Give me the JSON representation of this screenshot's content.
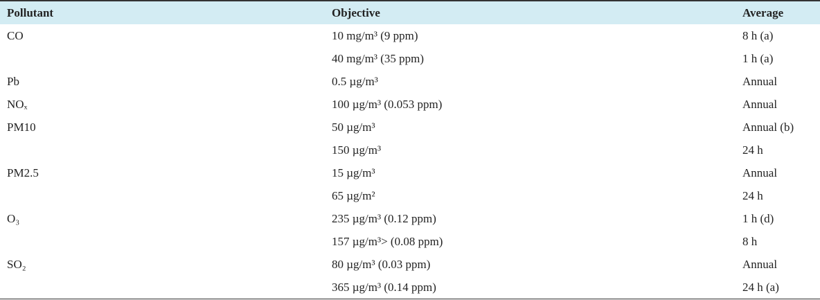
{
  "table": {
    "headers": [
      "Pollutant",
      "Objective",
      "Average"
    ],
    "rows": [
      [
        "CO",
        "10 mg/m³ (9 ppm)",
        "8 h (a)"
      ],
      [
        null,
        "40 mg/m³ (35 ppm)",
        "1 h (a)"
      ],
      [
        "Pb",
        "0.5 µg/m³",
        "Annual"
      ],
      [
        "NOₓ",
        "100 µg/m³ (0.053 ppm)",
        "Annual"
      ],
      [
        "PM10",
        "50 µg/m³",
        "Annual (b)"
      ],
      [
        null,
        "150 µg/m³",
        "24 h"
      ],
      [
        "PM2.5",
        "15 µg/m³",
        "Annual"
      ],
      [
        null,
        "65 µg/m²",
        "24 h"
      ],
      [
        "O₃",
        "235 µg/m³ (0.12 ppm)",
        "1 h (d)"
      ],
      [
        null,
        "157 µg/m³> (0.08 ppm)",
        "8 h"
      ],
      [
        "SO₂",
        "80 µg/m³ (0.03 ppm)",
        "Annual"
      ],
      [
        null,
        "365 µg/m³ (0.14 ppm)",
        "24 h (a)"
      ]
    ]
  }
}
